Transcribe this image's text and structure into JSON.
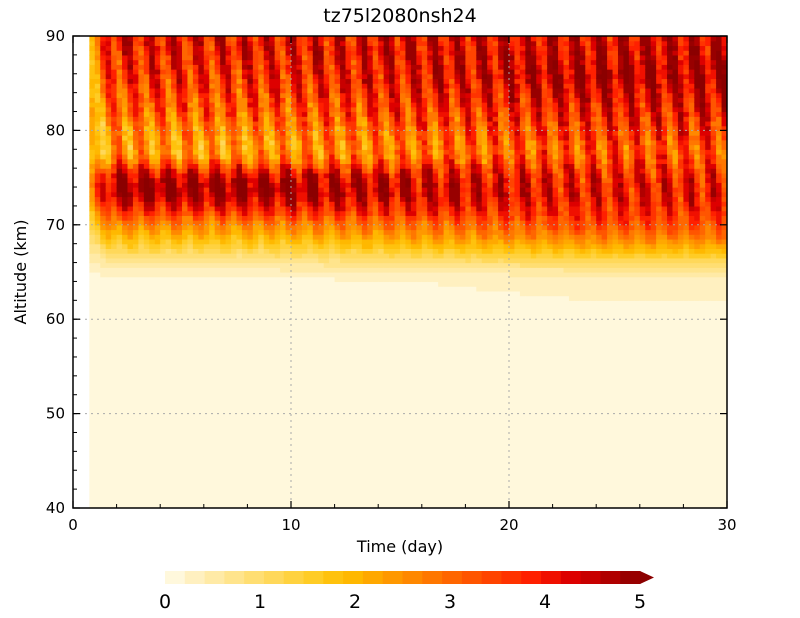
{
  "chart_data": {
    "type": "heatmap",
    "title": "tz75l2080nsh24",
    "xlabel": "Time (day)",
    "ylabel": "Altitude (km)",
    "xlim": [
      0,
      30
    ],
    "ylim": [
      40,
      90
    ],
    "x_ticks": [
      0,
      10,
      20,
      30
    ],
    "y_ticks": [
      40,
      50,
      60,
      70,
      80,
      90
    ],
    "grid": "dotted",
    "data_start_day": 0.8,
    "colorbar": {
      "orientation": "horizontal",
      "placement": "bottom",
      "min": 0,
      "max": 5,
      "step": 0.2,
      "ticks": [
        0,
        1,
        2,
        3,
        4,
        5
      ],
      "extend": "max",
      "colors": [
        "#FFF8DC",
        "#FFF0C0",
        "#FFEAA6",
        "#FFE48C",
        "#FFDE72",
        "#FFD85A",
        "#FFD23F",
        "#FFCC25",
        "#FFC20D",
        "#FFB800",
        "#FFA800",
        "#FF9800",
        "#FF8800",
        "#FF7700",
        "#FF6600",
        "#FF5500",
        "#FF4400",
        "#FF3300",
        "#FF2000",
        "#F01000",
        "#DD0000",
        "#C80000",
        "#B00000",
        "#980000"
      ],
      "extend_color": "#8B0000"
    },
    "altitude_profile": {
      "altitude_km": [
        40,
        60,
        64,
        65,
        66,
        67,
        68,
        69,
        70,
        71,
        72,
        73,
        74,
        75,
        76,
        77,
        78,
        80,
        82,
        84,
        86,
        88,
        90
      ],
      "early_period_value": [
        0.0,
        0.0,
        0.1,
        0.3,
        0.6,
        1.0,
        1.5,
        2.0,
        2.5,
        3.2,
        3.9,
        4.6,
        4.8,
        4.5,
        3.6,
        2.6,
        2.2,
        2.5,
        3.0,
        3.3,
        3.6,
        3.8,
        3.9
      ],
      "late_period_value": [
        0.0,
        0.1,
        0.3,
        0.5,
        1.0,
        1.6,
        2.2,
        2.8,
        3.2,
        3.5,
        3.7,
        3.8,
        3.8,
        3.7,
        3.5,
        3.2,
        3.1,
        3.4,
        3.8,
        4.2,
        4.5,
        4.3,
        4.1
      ]
    }
  }
}
